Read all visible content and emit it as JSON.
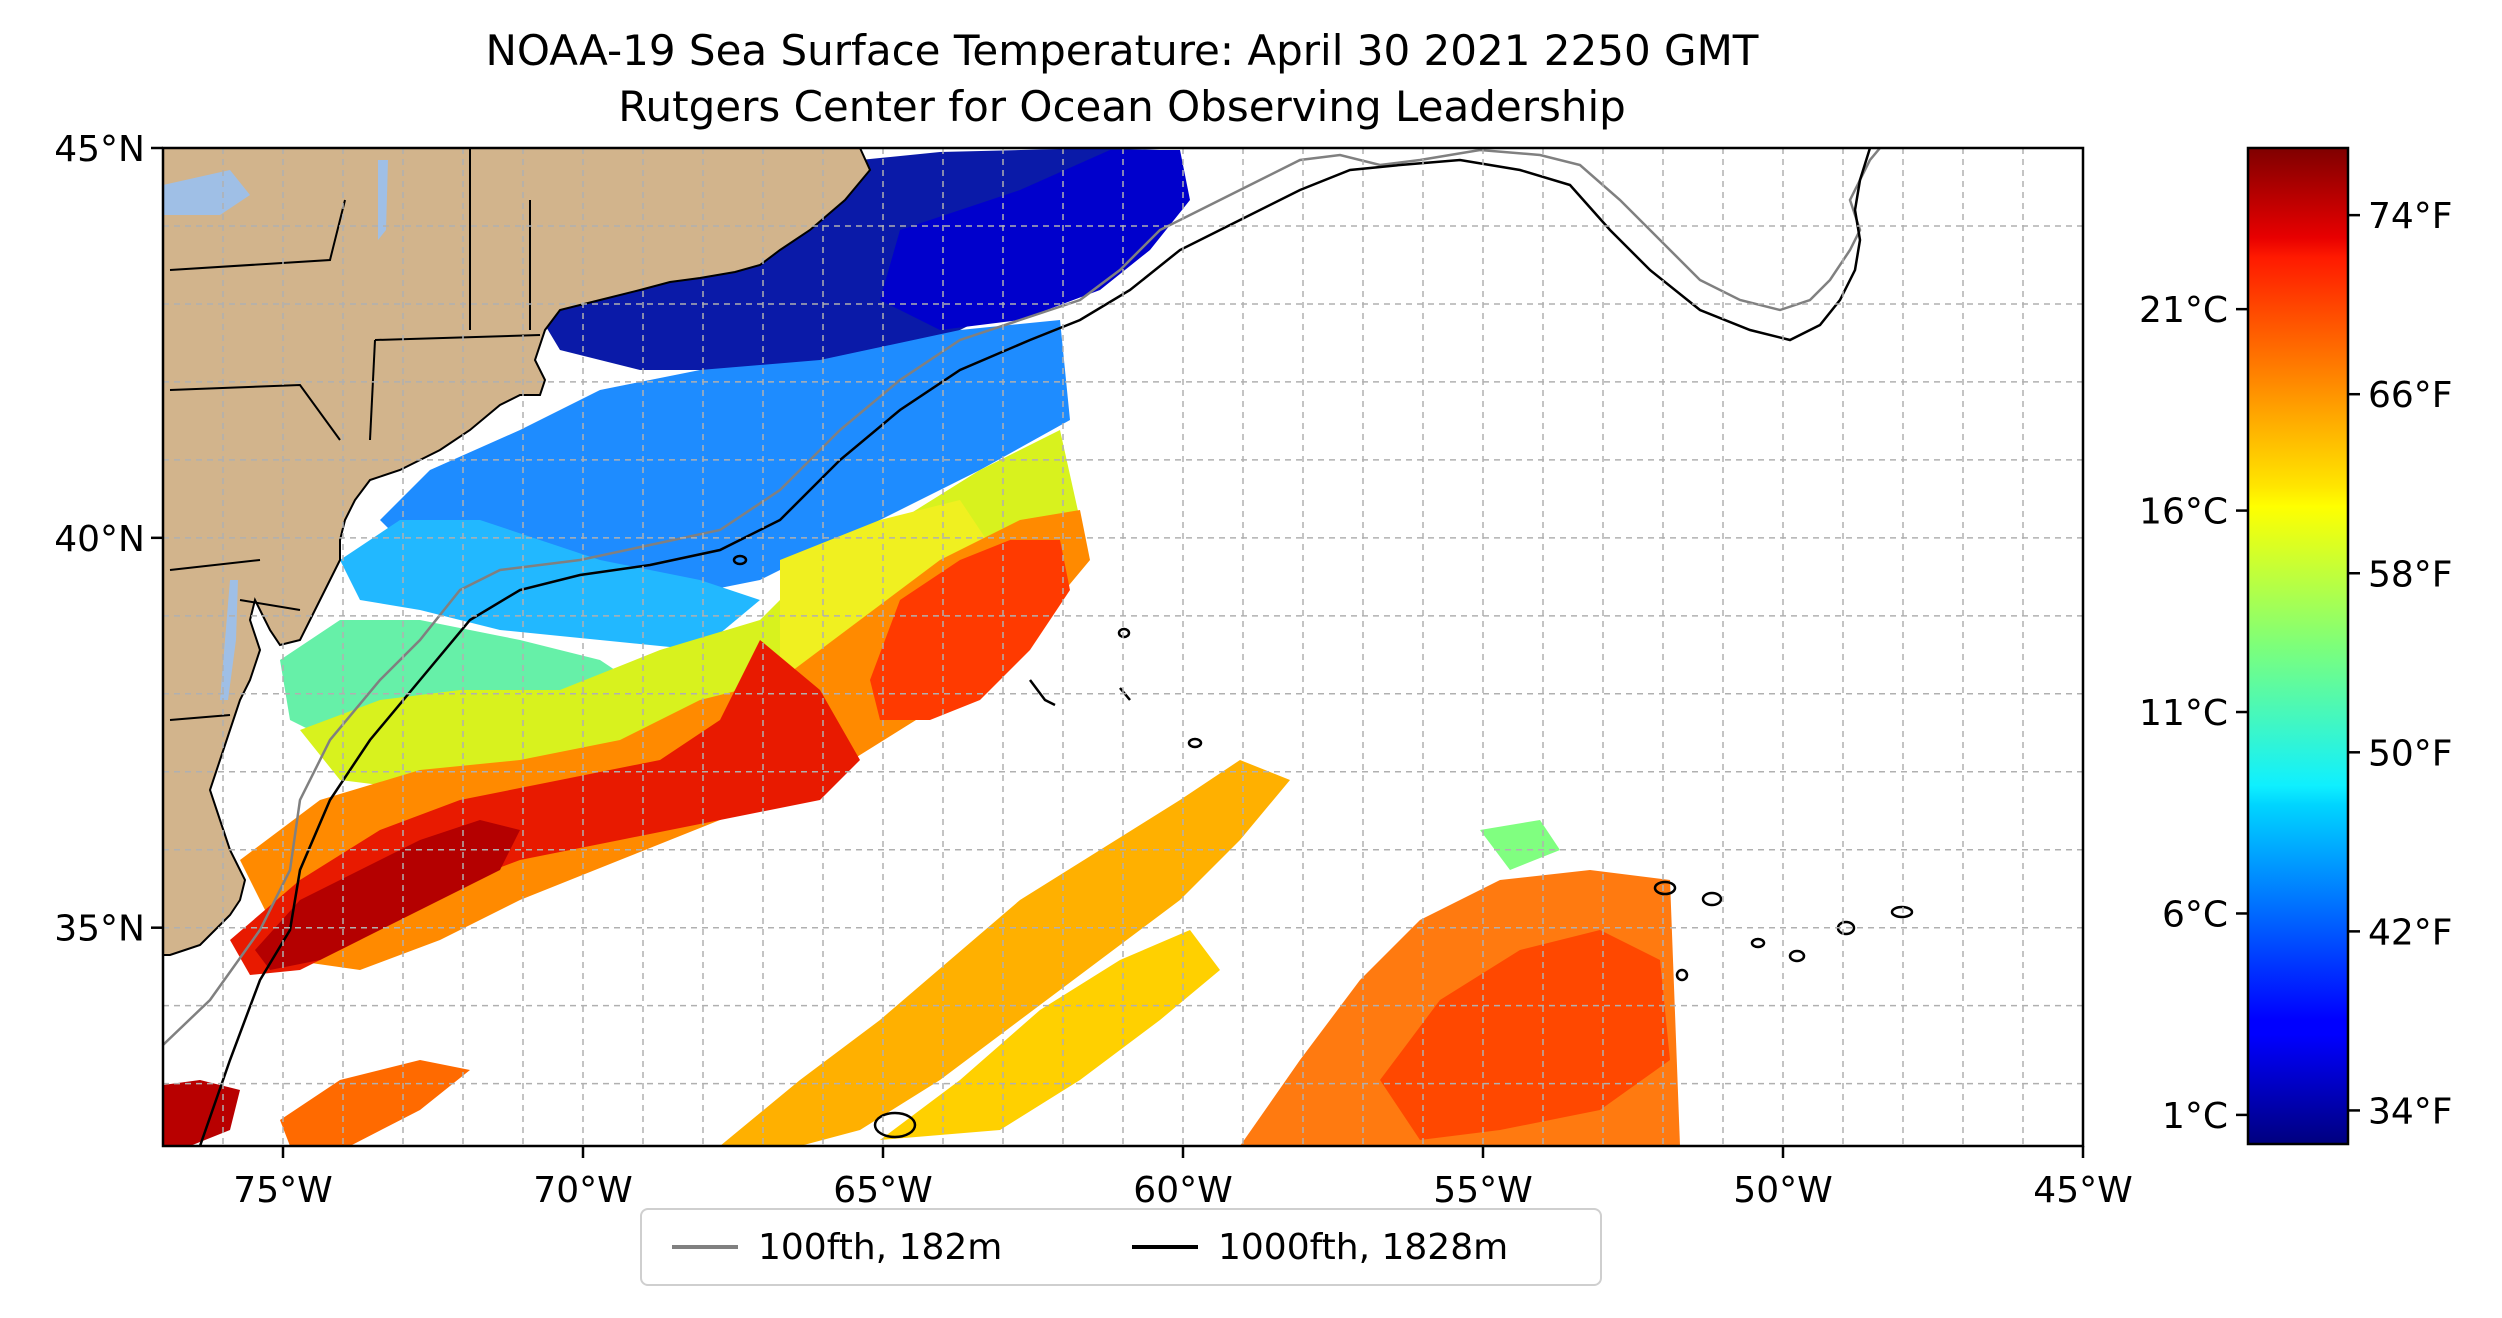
{
  "title": {
    "line1": "NOAA-19 Sea Surface Temperature: April 30 2021 2250 GMT",
    "line2": "Rutgers Center for Ocean Observing Leadership"
  },
  "map": {
    "lon_range": [
      -77,
      -45
    ],
    "lat_range": [
      32.2,
      45
    ],
    "lat_ticks": [
      {
        "value": 45,
        "label": "45°N"
      },
      {
        "value": 40,
        "label": "40°N"
      },
      {
        "value": 35,
        "label": "35°N"
      }
    ],
    "lon_ticks": [
      {
        "value": -75,
        "label": "75°W"
      },
      {
        "value": -70,
        "label": "70°W"
      },
      {
        "value": -65,
        "label": "65°W"
      },
      {
        "value": -60,
        "label": "60°W"
      },
      {
        "value": -55,
        "label": "55°W"
      },
      {
        "value": -50,
        "label": "50°W"
      },
      {
        "value": -45,
        "label": "45°W"
      }
    ],
    "gridlines": "dashed, every 1 degree",
    "land_color": "#d2b48c",
    "lake_color": "#9fbfe6"
  },
  "colorbar": {
    "colormap": "jet",
    "range_f": [
      32.5,
      77
    ],
    "celsius_ticks": [
      "21°C",
      "16°C",
      "11°C",
      "6°C",
      "1°C"
    ],
    "fahrenheit_ticks": [
      "74°F",
      "66°F",
      "58°F",
      "50°F",
      "42°F",
      "34°F"
    ]
  },
  "legend": {
    "position": "bottom-center",
    "items": [
      {
        "label": "100fth, 182m",
        "color": "#808080"
      },
      {
        "label": "1000fth, 1828m",
        "color": "#000000"
      }
    ]
  }
}
